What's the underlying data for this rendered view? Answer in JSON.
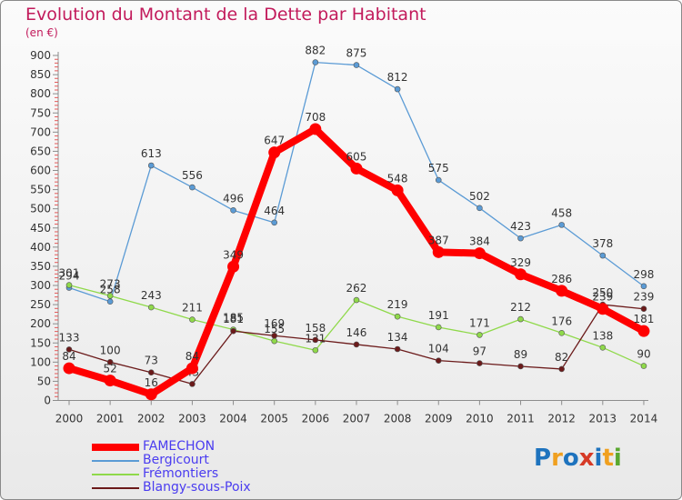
{
  "header": {
    "title": "Evolution du Montant de la Dette par Habitant",
    "subtitle": "(en €)"
  },
  "logo": {
    "text": "Proxiti"
  },
  "chart_data": {
    "type": "line",
    "title": "Evolution du Montant de la Dette par Habitant",
    "ylabel": "(en €)",
    "x": [
      "2000",
      "2001",
      "2002",
      "2003",
      "2004",
      "2005",
      "2006",
      "2007",
      "2008",
      "2009",
      "2010",
      "2011",
      "2012",
      "2013",
      "2014"
    ],
    "ylim": [
      0,
      900
    ],
    "yticks": [
      0,
      50,
      100,
      150,
      200,
      250,
      300,
      350,
      400,
      450,
      500,
      550,
      600,
      650,
      700,
      750,
      800,
      850,
      900
    ],
    "grid": false,
    "legend_position": "bottom-left",
    "series": [
      {
        "name": "FAMECHON",
        "color": "#ff0000",
        "values": [
          84,
          52,
          16,
          84,
          349,
          647,
          708,
          605,
          548,
          387,
          384,
          329,
          286,
          239,
          181
        ]
      },
      {
        "name": "Bergicourt",
        "color": "#5b9bd5",
        "values": [
          294,
          258,
          613,
          556,
          496,
          464,
          882,
          875,
          812,
          575,
          502,
          423,
          458,
          378,
          298
        ]
      },
      {
        "name": "Frémontiers",
        "color": "#8fd94a",
        "values": [
          301,
          273,
          243,
          211,
          185,
          155,
          131,
          262,
          219,
          191,
          171,
          212,
          176,
          138,
          90
        ]
      },
      {
        "name": "Blangy-sous-Poix",
        "color": "#6b1a1a",
        "values": [
          133,
          100,
          73,
          43,
          181,
          169,
          158,
          146,
          134,
          104,
          97,
          89,
          82,
          250,
          239
        ]
      }
    ]
  }
}
